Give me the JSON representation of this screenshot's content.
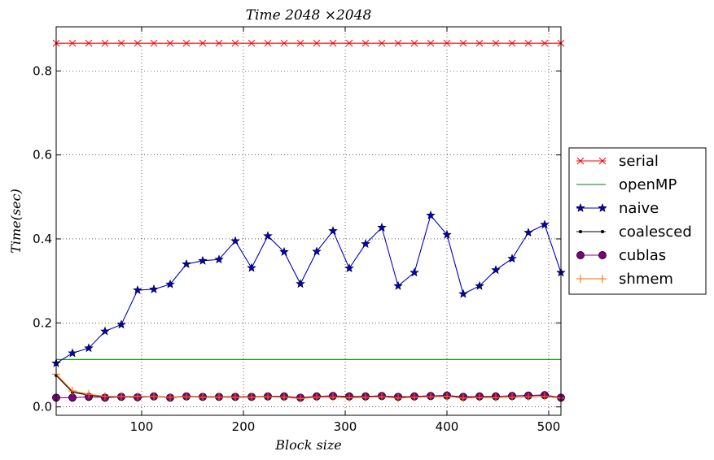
{
  "chart_data": {
    "type": "line",
    "title": "Time 2048 ×2048",
    "xlabel": "Block size",
    "ylabel": "Time(sec)",
    "xlim": [
      16,
      512
    ],
    "ylim": [
      -0.02,
      0.905
    ],
    "xticks": [
      100,
      200,
      300,
      400,
      500
    ],
    "yticks": [
      0.0,
      0.2,
      0.4,
      0.6,
      0.8
    ],
    "grid": true,
    "legend_placement": "outside-right",
    "x": [
      16,
      32,
      48,
      64,
      80,
      96,
      112,
      128,
      144,
      160,
      176,
      192,
      208,
      224,
      240,
      256,
      272,
      288,
      304,
      320,
      336,
      352,
      368,
      384,
      400,
      416,
      432,
      448,
      464,
      480,
      496,
      512
    ],
    "series": [
      {
        "name": "serial",
        "color": "#ff0000",
        "marker": "x",
        "values": [
          0.866,
          0.866,
          0.866,
          0.866,
          0.866,
          0.866,
          0.866,
          0.866,
          0.866,
          0.866,
          0.866,
          0.866,
          0.866,
          0.866,
          0.866,
          0.866,
          0.866,
          0.866,
          0.866,
          0.866,
          0.866,
          0.866,
          0.866,
          0.866,
          0.866,
          0.866,
          0.866,
          0.866,
          0.866,
          0.866,
          0.866,
          0.866
        ]
      },
      {
        "name": "openMP",
        "color": "#008000",
        "marker": "none",
        "values": [
          0.113,
          0.113,
          0.113,
          0.113,
          0.113,
          0.113,
          0.113,
          0.113,
          0.113,
          0.113,
          0.113,
          0.113,
          0.113,
          0.113,
          0.113,
          0.113,
          0.113,
          0.113,
          0.113,
          0.113,
          0.113,
          0.113,
          0.113,
          0.113,
          0.113,
          0.113,
          0.113,
          0.113,
          0.113,
          0.113,
          0.113,
          0.113
        ]
      },
      {
        "name": "naive",
        "color": "#0000cc",
        "marker": "star",
        "values": [
          0.104,
          0.128,
          0.14,
          0.18,
          0.196,
          0.278,
          0.28,
          0.292,
          0.34,
          0.348,
          0.351,
          0.395,
          0.331,
          0.407,
          0.369,
          0.293,
          0.37,
          0.419,
          0.33,
          0.388,
          0.427,
          0.288,
          0.32,
          0.456,
          0.41,
          0.269,
          0.288,
          0.326,
          0.353,
          0.415,
          0.434,
          0.32
        ]
      },
      {
        "name": "coalesced",
        "color": "#000000",
        "marker": "dot",
        "values": [
          0.075,
          0.035,
          0.028,
          0.024,
          0.024,
          0.024,
          0.025,
          0.023,
          0.025,
          0.024,
          0.024,
          0.024,
          0.024,
          0.025,
          0.025,
          0.022,
          0.025,
          0.026,
          0.024,
          0.025,
          0.026,
          0.023,
          0.025,
          0.026,
          0.027,
          0.023,
          0.025,
          0.025,
          0.026,
          0.027,
          0.028,
          0.022
        ]
      },
      {
        "name": "cublas",
        "color": "#7f007f",
        "marker": "circle",
        "values": [
          0.022,
          0.022,
          0.024,
          0.022,
          0.024,
          0.023,
          0.025,
          0.022,
          0.025,
          0.024,
          0.024,
          0.024,
          0.024,
          0.025,
          0.025,
          0.022,
          0.025,
          0.026,
          0.025,
          0.025,
          0.026,
          0.024,
          0.025,
          0.026,
          0.027,
          0.024,
          0.025,
          0.025,
          0.026,
          0.027,
          0.028,
          0.022
        ]
      },
      {
        "name": "shmem",
        "color": "#ff6600",
        "marker": "plus",
        "values": [
          0.078,
          0.038,
          0.03,
          0.025,
          0.025,
          0.025,
          0.025,
          0.023,
          0.024,
          0.023,
          0.023,
          0.023,
          0.023,
          0.024,
          0.023,
          0.02,
          0.023,
          0.023,
          0.022,
          0.023,
          0.024,
          0.021,
          0.023,
          0.024,
          0.025,
          0.021,
          0.022,
          0.022,
          0.023,
          0.024,
          0.025,
          0.021
        ]
      }
    ]
  }
}
